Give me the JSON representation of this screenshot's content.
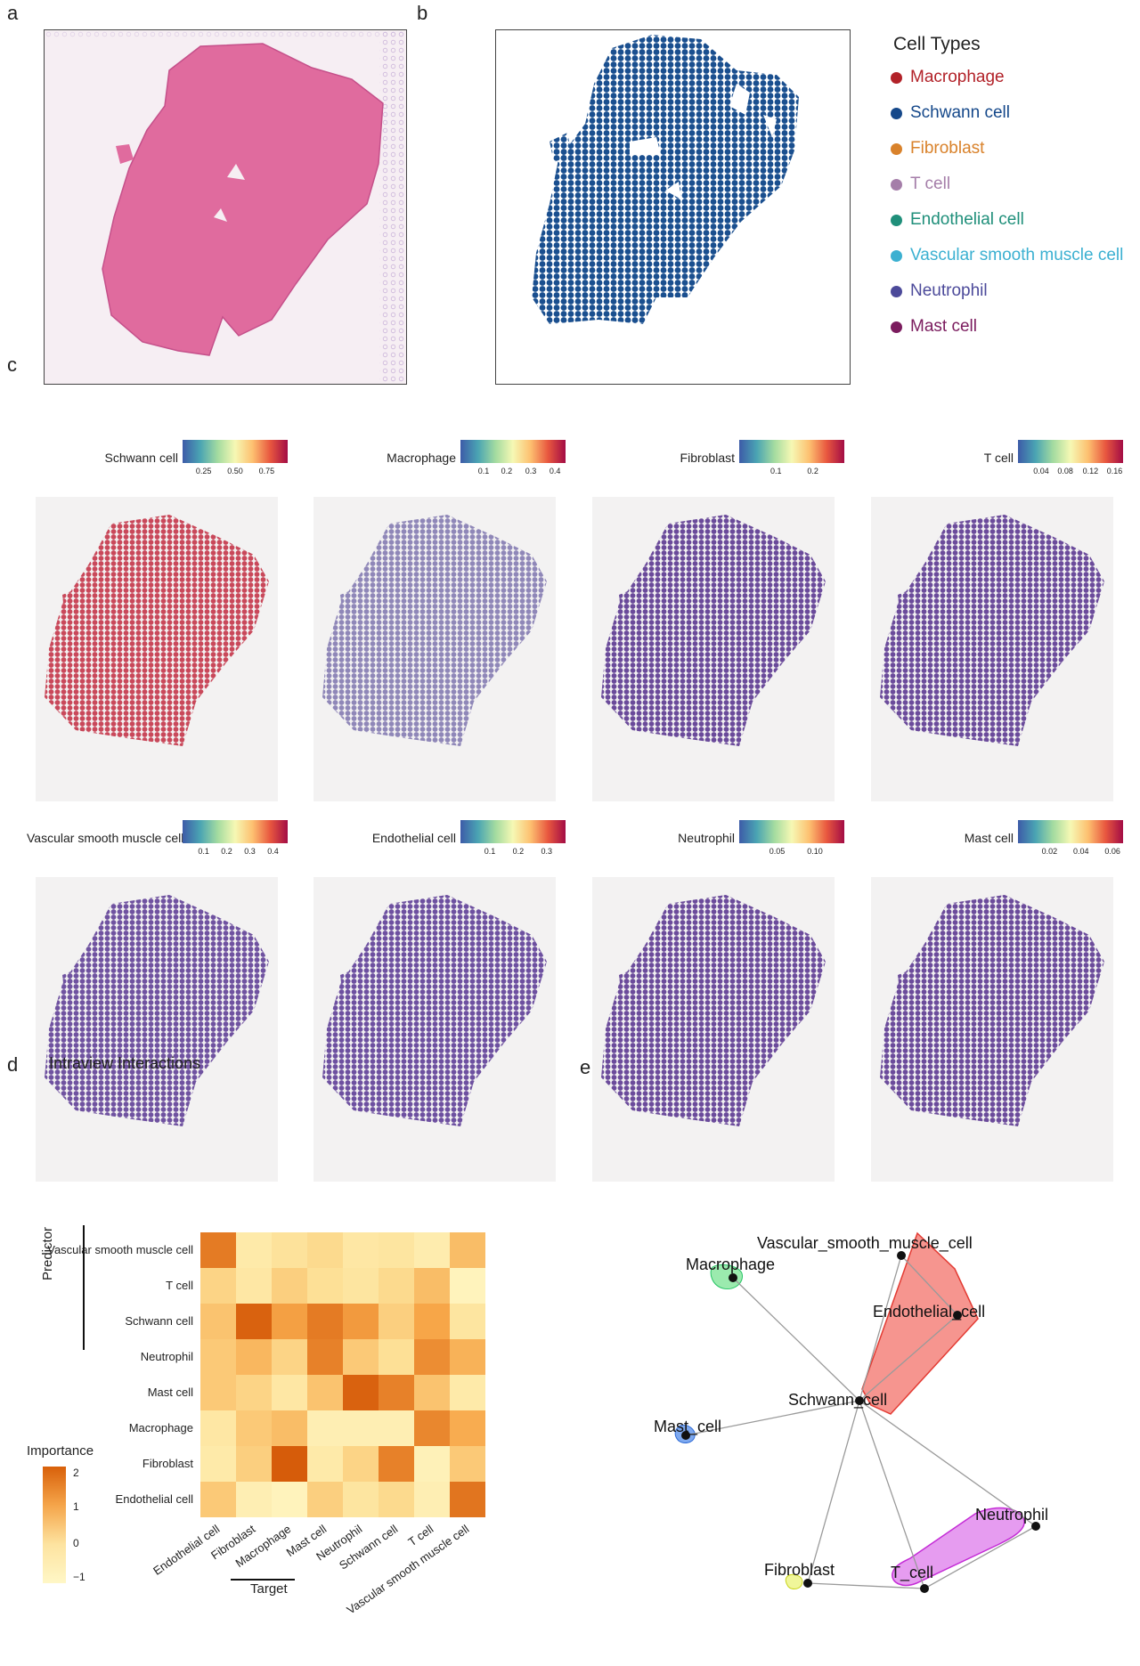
{
  "panels": {
    "a": "a",
    "b": "b",
    "c": "c",
    "d": "d",
    "e": "e"
  },
  "legend_b": {
    "title": "Cell Types",
    "items": [
      {
        "label": "Macrophage",
        "color": "#b22229"
      },
      {
        "label": "Schwann cell",
        "color": "#15488a"
      },
      {
        "label": "Fibroblast",
        "color": "#d9822b"
      },
      {
        "label": "T cell",
        "color": "#a57ea9"
      },
      {
        "label": "Endothelial cell",
        "color": "#1f8f7a"
      },
      {
        "label": "Vascular smooth muscle cell",
        "color": "#3bb0d1"
      },
      {
        "label": "Neutrophil",
        "color": "#4c4a9a"
      },
      {
        "label": "Mast cell",
        "color": "#7b1c5e"
      }
    ]
  },
  "spatial_maps": [
    {
      "name": "Schwann cell",
      "ticks": [
        "0.25",
        "0.50",
        "0.75"
      ],
      "tick_pos": [
        0.2,
        0.5,
        0.8
      ],
      "fill": "#c9485a"
    },
    {
      "name": "Macrophage",
      "ticks": [
        "0.1",
        "0.2",
        "0.3",
        "0.4"
      ],
      "tick_pos": [
        0.22,
        0.44,
        0.67,
        0.9
      ],
      "fill": "#8f87b8"
    },
    {
      "name": "Fibroblast",
      "ticks": [
        "0.1",
        "0.2"
      ],
      "tick_pos": [
        0.35,
        0.7
      ],
      "fill": "#6a4a9a"
    },
    {
      "name": "T cell",
      "ticks": [
        "0.04",
        "0.08",
        "0.12",
        "0.16"
      ],
      "tick_pos": [
        0.22,
        0.45,
        0.69,
        0.92
      ],
      "fill": "#6b4b9b"
    },
    {
      "name": "Vascular smooth muscle cell",
      "ticks": [
        "0.1",
        "0.2",
        "0.3",
        "0.4"
      ],
      "tick_pos": [
        0.2,
        0.42,
        0.64,
        0.86
      ],
      "fill": "#6f52a0"
    },
    {
      "name": "Endothelial cell",
      "ticks": [
        "0.1",
        "0.2",
        "0.3"
      ],
      "tick_pos": [
        0.28,
        0.55,
        0.82
      ],
      "fill": "#6d50a0"
    },
    {
      "name": "Neutrophil",
      "ticks": [
        "0.05",
        "0.10"
      ],
      "tick_pos": [
        0.36,
        0.72
      ],
      "fill": "#6b4b9b"
    },
    {
      "name": "Mast cell",
      "ticks": [
        "0.02",
        "0.04",
        "0.06"
      ],
      "tick_pos": [
        0.3,
        0.6,
        0.9
      ],
      "fill": "#6b4b9b"
    }
  ],
  "heatmap": {
    "title": "Intraview Interactions",
    "ylabel": "Predictor",
    "xlabel": "Target",
    "legend_title": "Importance",
    "legend_ticks": [
      "2",
      "1",
      "0",
      "−1"
    ],
    "rows": [
      "Vascular smooth muscle cell",
      "T cell",
      "Schwann cell",
      "Neutrophil",
      "Mast cell",
      "Macrophage",
      "Fibroblast",
      "Endothelial cell"
    ],
    "cols": [
      "Endothelial cell",
      "Fibroblast",
      "Macrophage",
      "Mast cell",
      "Neutrophil",
      "Schwann cell",
      "T cell",
      "Vascular smooth muscle cell"
    ],
    "values": [
      [
        1.7,
        -0.4,
        -0.1,
        0.1,
        -0.3,
        -0.2,
        -0.5,
        0.6
      ],
      [
        0.2,
        -0.3,
        0.3,
        0.0,
        -0.2,
        0.1,
        0.6,
        -0.8
      ],
      [
        0.5,
        2.1,
        1.1,
        1.7,
        1.2,
        0.3,
        1.0,
        -0.2
      ],
      [
        0.4,
        0.7,
        0.2,
        1.6,
        0.4,
        0.0,
        1.4,
        0.8
      ],
      [
        0.4,
        0.2,
        -0.3,
        0.5,
        2.1,
        1.6,
        0.5,
        -0.4
      ],
      [
        -0.3,
        0.4,
        0.6,
        -0.6,
        -0.6,
        -0.6,
        1.5,
        0.9
      ],
      [
        -0.4,
        0.3,
        2.2,
        -0.4,
        0.2,
        1.6,
        -0.7,
        0.4
      ],
      [
        0.4,
        -0.6,
        -0.8,
        0.3,
        -0.2,
        0.1,
        -0.6,
        1.8
      ]
    ]
  },
  "network": {
    "nodes": [
      {
        "id": "Vascular_smooth_muscle_cell",
        "label": "Vascular_smooth_muscle_cell"
      },
      {
        "id": "Macrophage",
        "label": "Macrophage"
      },
      {
        "id": "Endothelial_cell",
        "label": "Endothelial_cell"
      },
      {
        "id": "Schwann_cell",
        "label": "Schwann_cell"
      },
      {
        "id": "Mast_cell",
        "label": "Mast_cell"
      },
      {
        "id": "Neutrophil",
        "label": "Neutrophil"
      },
      {
        "id": "Fibroblast",
        "label": "Fibroblast"
      },
      {
        "id": "T_cell",
        "label": "T_cell"
      }
    ],
    "edges": [
      [
        "Schwann_cell",
        "Macrophage"
      ],
      [
        "Schwann_cell",
        "Vascular_smooth_muscle_cell"
      ],
      [
        "Schwann_cell",
        "Endothelial_cell"
      ],
      [
        "Vascular_smooth_muscle_cell",
        "Endothelial_cell"
      ],
      [
        "Schwann_cell",
        "Mast_cell"
      ],
      [
        "Schwann_cell",
        "Fibroblast"
      ],
      [
        "Schwann_cell",
        "T_cell"
      ],
      [
        "Schwann_cell",
        "Neutrophil"
      ],
      [
        "Fibroblast",
        "T_cell"
      ],
      [
        "T_cell",
        "Neutrophil"
      ]
    ],
    "hull_colors": {
      "red": "#f4817d",
      "green": "#8ee8a8",
      "blue": "#6fa0ee",
      "yellow": "#eef58a",
      "purple": "#e58bee"
    }
  }
}
